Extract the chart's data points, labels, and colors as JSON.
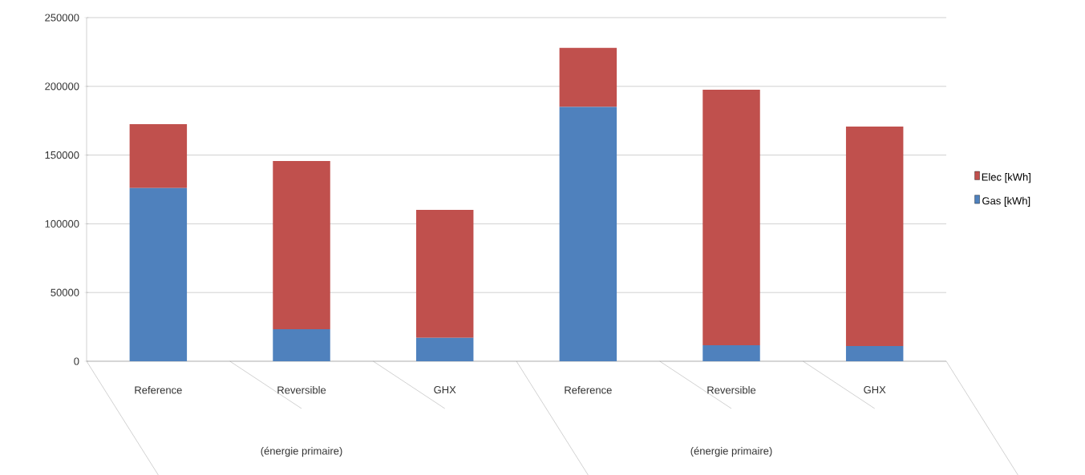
{
  "chart_data": {
    "type": "bar",
    "stacked": true,
    "categories": [
      "Reference",
      "Reversible",
      "GHX",
      "Reference",
      "Reversible",
      "GHX"
    ],
    "annotations": [
      "(énergie primaire)",
      "(énergie primaire)"
    ],
    "series": [
      {
        "name": "Gas [kWh]",
        "color": "#4f81bd",
        "values": [
          126000,
          23300,
          17000,
          185000,
          11700,
          11000
        ]
      },
      {
        "name": "Elec [kWh]",
        "color": "#c0504d",
        "values": [
          46500,
          122400,
          93100,
          43000,
          185800,
          159700
        ]
      }
    ],
    "ylim": [
      0,
      250000
    ],
    "yticks": [
      0,
      50000,
      100000,
      150000,
      200000,
      250000
    ],
    "grid": "y",
    "legend": "right"
  }
}
